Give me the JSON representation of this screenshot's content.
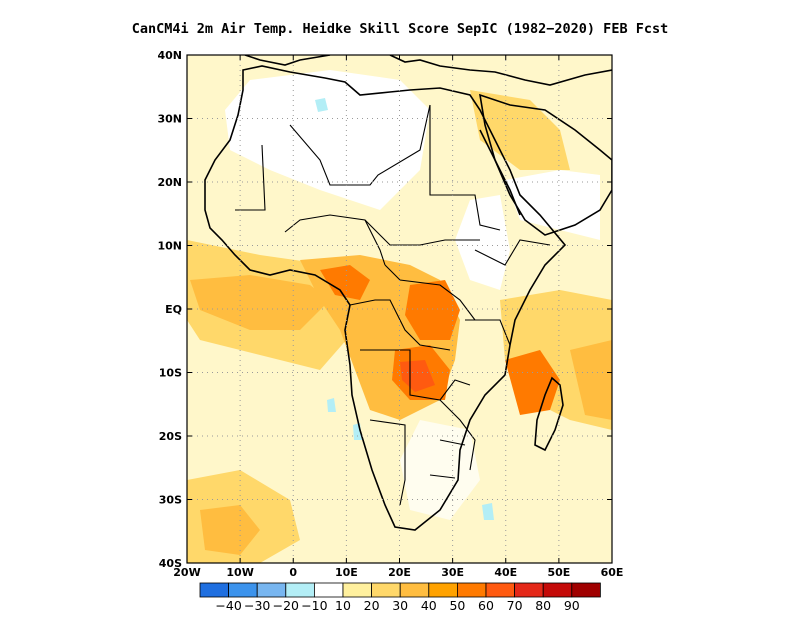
{
  "title": "CanCM4i  2m Air Temp. Heidke Skill Score SepIC (1982−2020) FEB Fcst",
  "map": {
    "lon_range": [
      -20,
      60
    ],
    "lat_range": [
      -40,
      40
    ],
    "x_ticks": [
      {
        "value": -20,
        "label": "20W"
      },
      {
        "value": -10,
        "label": "10W"
      },
      {
        "value": 0,
        "label": "0"
      },
      {
        "value": 10,
        "label": "10E"
      },
      {
        "value": 20,
        "label": "20E"
      },
      {
        "value": 30,
        "label": "30E"
      },
      {
        "value": 40,
        "label": "40E"
      },
      {
        "value": 50,
        "label": "50E"
      },
      {
        "value": 60,
        "label": "60E"
      }
    ],
    "y_ticks": [
      {
        "value": 40,
        "label": "40N"
      },
      {
        "value": 30,
        "label": "30N"
      },
      {
        "value": 20,
        "label": "20N"
      },
      {
        "value": 10,
        "label": "10N"
      },
      {
        "value": 0,
        "label": "EQ"
      },
      {
        "value": -10,
        "label": "10S"
      },
      {
        "value": -20,
        "label": "20S"
      },
      {
        "value": -30,
        "label": "30S"
      },
      {
        "value": -40,
        "label": "40S"
      }
    ],
    "grid": "dotted every 10 degrees"
  },
  "colorbar": {
    "colors": [
      "#1f6fe0",
      "#3c93ec",
      "#78b6f0",
      "#b3eef6",
      "#ffffff",
      "#fff09e",
      "#ffd86a",
      "#ffbd40",
      "#ffa200",
      "#ff7a00",
      "#ff5a10",
      "#e42818",
      "#c40a08",
      "#a00000"
    ],
    "labels": [
      "−40",
      "−30",
      "−20",
      "−10",
      "10",
      "20",
      "30",
      "40",
      "50",
      "60",
      "70",
      "80",
      "90"
    ]
  },
  "skill_regions": [
    {
      "level": "20",
      "color": "#fff09e",
      "area": "Atlantic north of equator"
    },
    {
      "level": "30",
      "color": "#ffd86a",
      "area": "Gulf of Guinea / West Africa coast"
    },
    {
      "level": "40",
      "color": "#ffbd40",
      "area": "Congo basin"
    },
    {
      "level": "60",
      "color": "#ff7a00",
      "area": "Central Africa, Angola–Zambia"
    },
    {
      "level": "70",
      "color": "#ff5a10",
      "area": "Angola–Zambia core, Mozambique Channel"
    },
    {
      "level": "10",
      "color": "#b3eef6",
      "area": "scattered small negative patches"
    }
  ]
}
